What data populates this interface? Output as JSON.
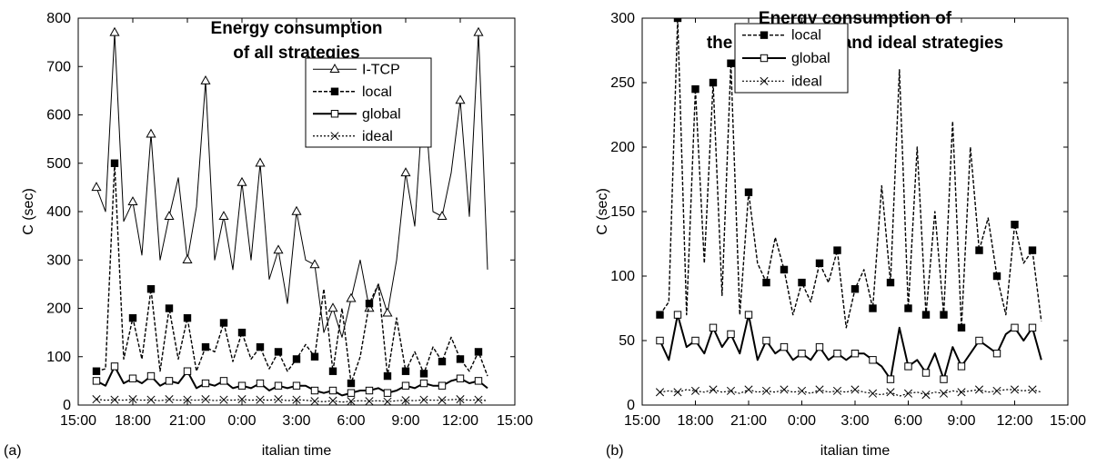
{
  "chart_data": [
    {
      "type": "line",
      "panel_label": "(a)",
      "title_line1": "Energy consumption",
      "title_line2": "of all strategies",
      "xlabel": "italian time",
      "ylabel": "C (sec)",
      "xlim": [
        15,
        39
      ],
      "ylim": [
        0,
        800
      ],
      "xticks": [
        15,
        18,
        21,
        24,
        27,
        30,
        33,
        36,
        39
      ],
      "xtick_labels": [
        "15:00",
        "18:00",
        "21:00",
        "0:00",
        "3:00",
        "6:00",
        "9:00",
        "12:00",
        "15:00"
      ],
      "yticks": [
        0,
        100,
        200,
        300,
        400,
        500,
        600,
        700,
        800
      ],
      "ytick_labels": [
        "0",
        "100",
        "200",
        "300",
        "400",
        "500",
        "600",
        "700",
        "800"
      ],
      "grid": false,
      "legend_position": "top-right",
      "x": [
        16.0,
        16.5,
        17.0,
        17.5,
        18.0,
        18.5,
        19.0,
        19.5,
        20.0,
        20.5,
        21.0,
        21.5,
        22.0,
        22.5,
        23.0,
        23.5,
        24.0,
        24.5,
        25.0,
        25.5,
        26.0,
        26.5,
        27.0,
        27.5,
        28.0,
        28.5,
        29.0,
        29.5,
        30.0,
        30.5,
        31.0,
        31.5,
        32.0,
        32.5,
        33.0,
        33.5,
        34.0,
        34.5,
        35.0,
        35.5,
        36.0,
        36.5,
        37.0,
        37.5
      ],
      "series": [
        {
          "name": "I-TCP",
          "style": "solid-thin",
          "marker": "triangle",
          "color": "#000000",
          "values": [
            450,
            400,
            770,
            380,
            420,
            310,
            560,
            300,
            390,
            470,
            300,
            410,
            670,
            300,
            390,
            280,
            460,
            300,
            500,
            260,
            320,
            210,
            400,
            300,
            290,
            150,
            200,
            140,
            220,
            300,
            200,
            250,
            190,
            300,
            480,
            370,
            650,
            400,
            390,
            480,
            630,
            390,
            770,
            280
          ]
        },
        {
          "name": "local",
          "style": "dashed",
          "marker": "filled-square",
          "color": "#000000",
          "values": [
            70,
            75,
            500,
            95,
            180,
            95,
            240,
            70,
            200,
            95,
            180,
            70,
            120,
            110,
            170,
            90,
            150,
            95,
            120,
            75,
            110,
            70,
            95,
            125,
            100,
            240,
            70,
            200,
            45,
            100,
            210,
            250,
            60,
            180,
            70,
            110,
            65,
            120,
            90,
            140,
            95,
            70,
            110,
            60
          ]
        },
        {
          "name": "global",
          "style": "solid-thick",
          "marker": "open-square",
          "color": "#000000",
          "values": [
            50,
            40,
            80,
            45,
            55,
            45,
            60,
            40,
            50,
            45,
            70,
            35,
            45,
            40,
            50,
            35,
            40,
            35,
            45,
            30,
            40,
            35,
            40,
            40,
            30,
            25,
            30,
            20,
            25,
            30,
            30,
            35,
            25,
            30,
            40,
            35,
            45,
            40,
            40,
            50,
            55,
            45,
            50,
            35
          ]
        },
        {
          "name": "ideal",
          "style": "dotted",
          "marker": "x",
          "color": "#000000",
          "values": [
            12,
            10,
            11,
            10,
            12,
            10,
            11,
            9,
            12,
            10,
            11,
            10,
            12,
            9,
            11,
            10,
            12,
            10,
            11,
            10,
            12,
            9,
            11,
            10,
            8,
            7,
            9,
            6,
            8,
            9,
            8,
            9,
            7,
            9,
            10,
            9,
            11,
            10,
            10,
            11,
            12,
            10,
            11,
            9
          ]
        }
      ]
    },
    {
      "type": "line",
      "panel_label": "(b)",
      "title_line1": "Energy consumption of",
      "title_line2": "the local, global and ideal strategies",
      "xlabel": "italian time",
      "ylabel": "C (sec)",
      "xlim": [
        15,
        39
      ],
      "ylim": [
        0,
        300
      ],
      "xticks": [
        15,
        18,
        21,
        24,
        27,
        30,
        33,
        36,
        39
      ],
      "xtick_labels": [
        "15:00",
        "18:00",
        "21:00",
        "0:00",
        "3:00",
        "6:00",
        "9:00",
        "12:00",
        "15:00"
      ],
      "yticks": [
        0,
        50,
        100,
        150,
        200,
        250,
        300
      ],
      "ytick_labels": [
        "0",
        "50",
        "100",
        "150",
        "200",
        "250",
        "300"
      ],
      "grid": false,
      "legend_position": "top-left",
      "x": [
        16.0,
        16.5,
        17.0,
        17.5,
        18.0,
        18.5,
        19.0,
        19.5,
        20.0,
        20.5,
        21.0,
        21.5,
        22.0,
        22.5,
        23.0,
        23.5,
        24.0,
        24.5,
        25.0,
        25.5,
        26.0,
        26.5,
        27.0,
        27.5,
        28.0,
        28.5,
        29.0,
        29.5,
        30.0,
        30.5,
        31.0,
        31.5,
        32.0,
        32.5,
        33.0,
        33.5,
        34.0,
        34.5,
        35.0,
        35.5,
        36.0,
        36.5,
        37.0,
        37.5
      ],
      "series": [
        {
          "name": "local",
          "style": "dashed",
          "marker": "filled-square",
          "color": "#000000",
          "values": [
            70,
            80,
            300,
            70,
            245,
            110,
            250,
            85,
            265,
            70,
            165,
            110,
            95,
            130,
            105,
            70,
            95,
            80,
            110,
            95,
            120,
            60,
            90,
            105,
            75,
            170,
            95,
            260,
            75,
            200,
            70,
            150,
            70,
            220,
            60,
            200,
            120,
            145,
            100,
            70,
            140,
            110,
            120,
            65
          ]
        },
        {
          "name": "global",
          "style": "solid-thick",
          "marker": "open-square",
          "color": "#000000",
          "values": [
            50,
            35,
            70,
            45,
            50,
            40,
            60,
            45,
            55,
            40,
            70,
            35,
            50,
            40,
            45,
            35,
            40,
            35,
            45,
            35,
            40,
            35,
            40,
            40,
            35,
            30,
            20,
            60,
            30,
            35,
            25,
            40,
            20,
            45,
            30,
            40,
            50,
            45,
            40,
            55,
            60,
            50,
            60,
            35
          ]
        },
        {
          "name": "ideal",
          "style": "dotted",
          "marker": "x",
          "color": "#000000",
          "values": [
            10,
            11,
            10,
            12,
            11,
            10,
            12,
            10,
            11,
            9,
            12,
            10,
            11,
            10,
            12,
            10,
            11,
            9,
            12,
            10,
            11,
            10,
            12,
            10,
            9,
            8,
            10,
            7,
            9,
            10,
            8,
            10,
            9,
            11,
            10,
            11,
            12,
            10,
            11,
            12,
            12,
            11,
            12,
            10
          ]
        }
      ]
    }
  ]
}
